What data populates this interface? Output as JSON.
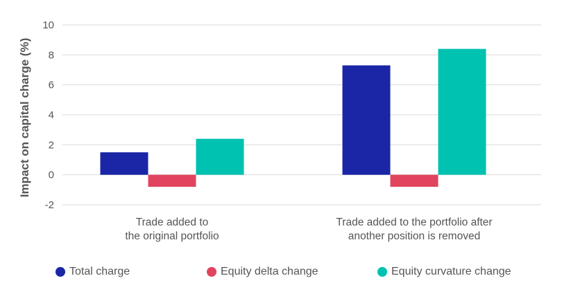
{
  "chart_data": {
    "type": "bar",
    "title": "",
    "xlabel": "",
    "ylabel": "Impact on capital charge (%)",
    "ylim": [
      -2,
      10
    ],
    "yticks": [
      -2,
      0,
      2,
      4,
      6,
      8,
      10
    ],
    "grid": true,
    "legend_position": "bottom",
    "categories": [
      [
        "Trade added to",
        "the original portfolio"
      ],
      [
        "Trade added to the portfolio after",
        "another position is removed"
      ]
    ],
    "series": [
      {
        "name": "Total charge",
        "color": "#1a26a6",
        "values": [
          1.5,
          7.3
        ]
      },
      {
        "name": "Equity delta change",
        "color": "#e0445f",
        "values": [
          -0.8,
          -0.8
        ]
      },
      {
        "name": "Equity curvature change",
        "color": "#00c2b0",
        "values": [
          2.4,
          8.4
        ]
      }
    ]
  }
}
